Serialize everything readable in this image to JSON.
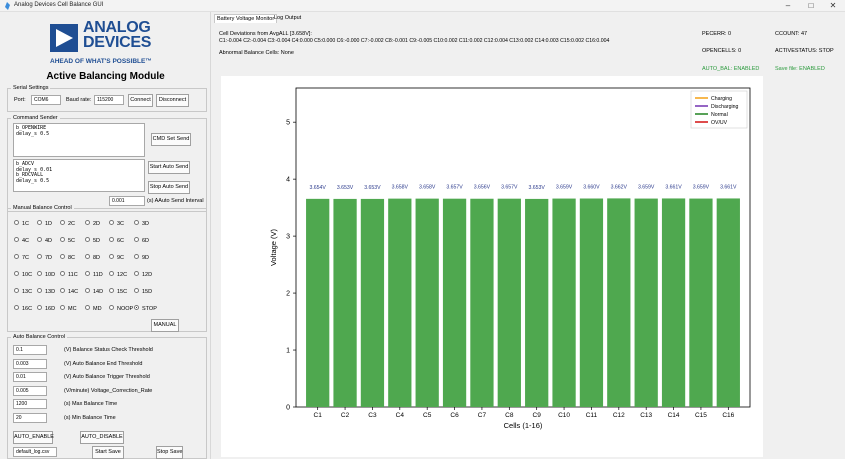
{
  "window": {
    "title": "Analog Devices Cell Balance GUI",
    "minimize": "–",
    "maximize": "□",
    "close": "✕"
  },
  "logo": {
    "line1": "ANALOG",
    "line2": "DEVICES",
    "tagline": "AHEAD OF WHAT'S POSSIBLE™",
    "brand_color": "#1f4e93"
  },
  "module_title": "Active Balancing Module",
  "serial": {
    "legend": "Serial Settings",
    "port_label": "Port:",
    "port_value": "COM6",
    "baud_label": "Baud rate:",
    "baud_value": "115200",
    "connect": "Connect",
    "disconnect": "Disconnect"
  },
  "command_sender": {
    "legend": "Command Sender",
    "text1": "b_OPENWIRE\ndelay_s 0.5",
    "text2": "b_ADCV\ndelay_s 0.01\nb_RDCVALL\ndelay_s 0.5",
    "cmd_set_send": "CMD Set Send",
    "start_auto_send": "Start Auto Send",
    "stop_auto_send": "Stop Auto Send",
    "interval_value": "0.001",
    "interval_label": "(s) AAuto Send Interval"
  },
  "manual": {
    "legend": "Manual Balance Control",
    "options": [
      [
        "1C",
        "1D",
        "2C",
        "2D",
        "3C",
        "3D"
      ],
      [
        "4C",
        "4D",
        "5C",
        "5D",
        "6C",
        "6D"
      ],
      [
        "7C",
        "7D",
        "8C",
        "8D",
        "9C",
        "9D"
      ],
      [
        "10C",
        "10D",
        "11C",
        "11D",
        "12C",
        "12D"
      ],
      [
        "13C",
        "13D",
        "14C",
        "14D",
        "15C",
        "15D"
      ],
      [
        "16C",
        "16D",
        "MC",
        "MD",
        "NOOP",
        "STOP"
      ]
    ],
    "selected": "STOP",
    "manual_button": "MANUAL"
  },
  "auto": {
    "legend": "Auto Balance Control",
    "params": [
      {
        "value": "0.1",
        "label": "(V) Balance Status Check Threshold"
      },
      {
        "value": "0.003",
        "label": "(V) Auto Balance End Threshold"
      },
      {
        "value": "0.01",
        "label": "(V) Auto Balance Trigger Threshold"
      },
      {
        "value": "0.005",
        "label": "(V/minute) Voltage_Correction_Rate"
      },
      {
        "value": "1200",
        "label": "(s) Max Balance Time"
      },
      {
        "value": "20",
        "label": "(s) Min Balance Time"
      }
    ],
    "auto_enable": "AUTO_ENABLE",
    "auto_disable": "AUTO_DISABLE",
    "log_file": "default_log.csv",
    "start_save": "Start Save",
    "stop_save": "Stop Save"
  },
  "tabs": [
    "Battery Voltage Monitor",
    "Log Output"
  ],
  "info": {
    "deviation_title": "Cell Deviations from AvgALL [3.658V]:",
    "deviation_values": "C1:-0.004 C2:-0.004 C3:-0.004 C4:0.000 C5:0.000 C6:-0.000 C7:-0.002 C8:-0.001 C9:-0.005 C10:0.002 C11:0.002 C12:0.004 C13:0.002 C14:0.003 C15:0.002 C16:0.004",
    "abnormal": "Abnormal Balance Cells: None",
    "pecerr": "PECERR: 0",
    "opencells": "OPENCELLS: 0",
    "ccount": "CCOUNT: 47",
    "activestatus": "ACTIVESTATUS: STOP",
    "auto_bal": "AUTO_BAL: ENABLED",
    "save_file": "Save file: ENABLED",
    "status_color": "#2a9a3c"
  },
  "chart_data": {
    "type": "bar",
    "categories": [
      "C1",
      "C2",
      "C3",
      "C4",
      "C5",
      "C6",
      "C7",
      "C8",
      "C9",
      "C10",
      "C11",
      "C12",
      "C13",
      "C14",
      "C15",
      "C16"
    ],
    "values": [
      3.654,
      3.653,
      3.653,
      3.658,
      3.658,
      3.657,
      3.656,
      3.657,
      3.653,
      3.659,
      3.66,
      3.662,
      3.659,
      3.661,
      3.659,
      3.661
    ],
    "data_labels": [
      "3.654V",
      "3.653V",
      "3.653V",
      "3.658V",
      "3.658V",
      "3.657V",
      "3.656V",
      "3.657V",
      "3.653V",
      "3.659V",
      "3.660V",
      "3.662V",
      "3.659V",
      "3.661V",
      "3.659V",
      "3.661V"
    ],
    "xlabel": "Cells (1-16)",
    "ylabel": "Voltage (V)",
    "ylim": [
      0,
      5.6
    ],
    "yticks": [
      0,
      1,
      2,
      3,
      4,
      5
    ],
    "bar_color": "#4fa84f",
    "legend_position": "top-right",
    "legend": [
      {
        "name": "Charging",
        "color": "#f5a623"
      },
      {
        "name": "Discharging",
        "color": "#7b3fb5"
      },
      {
        "name": "Normal",
        "color": "#2e8b2e"
      },
      {
        "name": "OV/UV",
        "color": "#d62020"
      }
    ]
  }
}
